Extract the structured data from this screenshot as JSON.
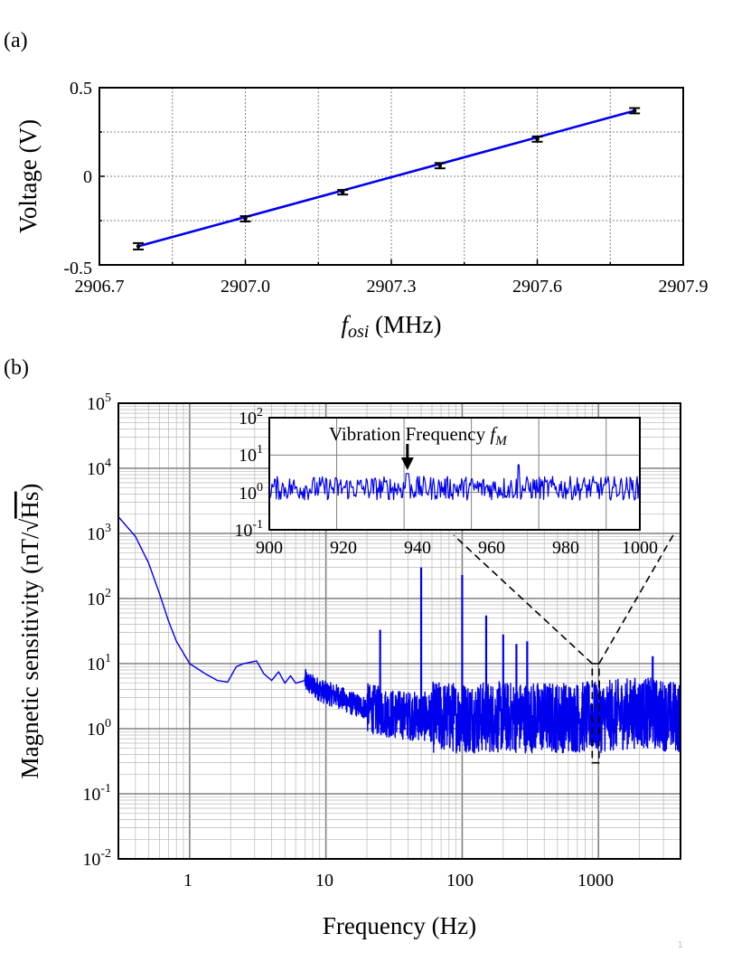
{
  "colors": {
    "series": "#0000ee",
    "axis": "#000000",
    "grid_major": "#808080",
    "grid_minor": "#b8b8b8",
    "errorbar": "#000000"
  },
  "page_mark": "1",
  "chart_data": [
    {
      "type": "line",
      "panel_label": "(a)",
      "title": "",
      "xlabel_symbol": "f",
      "xlabel_subscript": "osi",
      "xlabel_unit": " (MHz)",
      "ylabel": "Voltage (V)",
      "xlim": [
        2906.7,
        2907.9
      ],
      "ylim": [
        -0.5,
        0.5
      ],
      "xticks": [
        "2906.7",
        "2907.0",
        "2907.3",
        "2907.6",
        "2907.9"
      ],
      "yticks": [
        "-0.5",
        "0",
        "0.5"
      ],
      "grid": true,
      "series": [
        {
          "kind": "points_with_errorbars",
          "x": [
            2906.78,
            2907.0,
            2907.2,
            2907.4,
            2907.6,
            2907.8
          ],
          "y": [
            -0.395,
            -0.24,
            -0.09,
            0.06,
            0.21,
            0.37
          ],
          "yerr": [
            0.018,
            0.015,
            0.013,
            0.015,
            0.015,
            0.015
          ]
        },
        {
          "kind": "linear_fit",
          "x": [
            2906.78,
            2907.8
          ],
          "y": [
            -0.395,
            0.37
          ]
        }
      ]
    },
    {
      "type": "line",
      "panel_label": "(b)",
      "title": "",
      "xlabel": "Frequency (Hz)",
      "ylabel_prefix": "Magnetic sensitivity (nT/",
      "ylabel_sqrt": "Hs",
      "ylabel_suffix": ")",
      "xscale": "log",
      "yscale": "log",
      "xlim": [
        0.3,
        4000
      ],
      "ylim": [
        0.01,
        100000
      ],
      "xticks": [
        "1",
        "10",
        "100",
        "1000"
      ],
      "yticks_exponents": [
        "-2",
        "-1",
        "0",
        "1",
        "2",
        "3",
        "4",
        "5"
      ],
      "grid": true,
      "spectrum_envelope": {
        "x": [
          0.3,
          0.4,
          0.5,
          0.6,
          0.7,
          0.8,
          1.0,
          1.3,
          1.6,
          1.9,
          2.2,
          2.5,
          2.8,
          3.1,
          3.5,
          4.0,
          4.5,
          5.0,
          5.5,
          6.0,
          7.0,
          8.0,
          9.0,
          10,
          12,
          15,
          18,
          22,
          30,
          40,
          60,
          100,
          200,
          400,
          700,
          1000,
          2000,
          4000
        ],
        "y": [
          1800,
          900,
          350,
          120,
          45,
          22,
          10,
          7,
          5.5,
          5.2,
          9,
          10,
          10.5,
          11,
          7,
          5.5,
          7.5,
          5,
          6.5,
          5,
          5.5,
          4.5,
          4,
          3.5,
          3.2,
          2.5,
          2.2,
          2,
          1.7,
          1.6,
          1.5,
          1.5,
          1.5,
          1.5,
          1.5,
          1.5,
          1.8,
          1.5
        ]
      },
      "peaks": [
        {
          "x": 25,
          "y": 33
        },
        {
          "x": 50,
          "y": 300
        },
        {
          "x": 100,
          "y": 230
        },
        {
          "x": 150,
          "y": 55
        },
        {
          "x": 200,
          "y": 28
        },
        {
          "x": 250,
          "y": 20
        },
        {
          "x": 300,
          "y": 22
        },
        {
          "x": 2500,
          "y": 13
        }
      ],
      "zoom_box": {
        "x": [
          900,
          1010
        ],
        "y": [
          0.3,
          10
        ]
      }
    },
    {
      "type": "line",
      "role": "inset",
      "title": "",
      "annotation_text": "Vibration Frequency ",
      "annotation_symbol": "f",
      "annotation_subscript": "M",
      "annotation_x": 941,
      "xlim": [
        900,
        1010
      ],
      "ylim": [
        0.1,
        100
      ],
      "xscale": "linear",
      "yscale": "log",
      "xticks": [
        "900",
        "920",
        "940",
        "960",
        "980",
        "1000"
      ],
      "yticks_exponents": [
        "-1",
        "0",
        "1",
        "2"
      ],
      "baseline": 1.3,
      "peak_x": 941,
      "peak_y": 3.2,
      "max_x": 974,
      "max_y": 5.5
    }
  ]
}
